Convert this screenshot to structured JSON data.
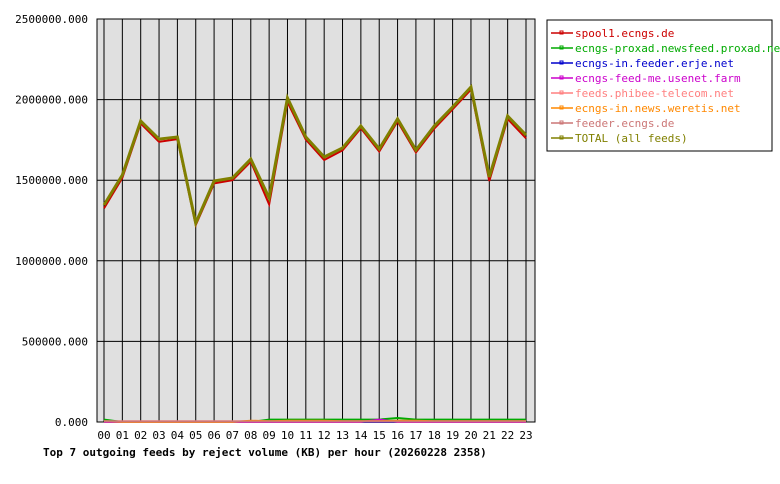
{
  "chart_data": {
    "type": "line",
    "title": "Top 7 outgoing feeds by reject volume (KB) per hour (20260228 2358)",
    "xlabel": "",
    "ylabel": "",
    "ylim": [
      0,
      2500000
    ],
    "yticks": [
      "0.000",
      "500000.000",
      "1000000.000",
      "1500000.000",
      "2000000.000",
      "2500000.000"
    ],
    "grid": true,
    "legend_position": "right",
    "categories": [
      "00",
      "01",
      "02",
      "03",
      "04",
      "05",
      "06",
      "07",
      "08",
      "09",
      "10",
      "11",
      "12",
      "13",
      "14",
      "15",
      "16",
      "17",
      "18",
      "19",
      "20",
      "21",
      "22",
      "23"
    ],
    "series": [
      {
        "name": "spool1.ecngs.de",
        "color": "#cc0000",
        "values": [
          1325000,
          1515000,
          1852000,
          1738000,
          1755000,
          1222000,
          1480000,
          1500000,
          1615000,
          1350000,
          1985000,
          1752000,
          1625000,
          1685000,
          1822000,
          1678000,
          1865000,
          1672000,
          1820000,
          1940000,
          2062000,
          1495000,
          1880000,
          1760000
        ]
      },
      {
        "name": "ecngs-proxad.newsfeed.proxad.net",
        "color": "#00aa00",
        "values": [
          15000,
          0,
          0,
          0,
          0,
          0,
          0,
          0,
          0,
          15000,
          15000,
          15000,
          15000,
          15000,
          15000,
          15000,
          25000,
          15000,
          15000,
          15000,
          15000,
          15000,
          15000,
          15000
        ]
      },
      {
        "name": "ecngs-in.feeder.erje.net",
        "color": "#0000cc",
        "values": [
          0,
          0,
          0,
          0,
          0,
          0,
          0,
          0,
          0,
          0,
          0,
          0,
          0,
          0,
          0,
          0,
          0,
          0,
          0,
          0,
          0,
          0,
          0,
          0
        ]
      },
      {
        "name": "ecngs-feed-me.usenet.farm",
        "color": "#cc00cc",
        "values": [
          0,
          0,
          0,
          0,
          0,
          0,
          0,
          0,
          0,
          0,
          0,
          0,
          0,
          0,
          0,
          15000,
          0,
          0,
          0,
          0,
          0,
          0,
          0,
          0
        ]
      },
      {
        "name": "feeds.phibee-telecom.net",
        "color": "#ff8080",
        "values": [
          5000,
          5000,
          5000,
          5000,
          5000,
          5000,
          5000,
          5000,
          5000,
          5000,
          5000,
          5000,
          5000,
          5000,
          5000,
          5000,
          5000,
          5000,
          5000,
          5000,
          5000,
          5000,
          5000,
          5000
        ]
      },
      {
        "name": "ecngs-in.news.weretis.net",
        "color": "#ff8800",
        "values": [
          5000,
          0,
          0,
          0,
          0,
          0,
          0,
          0,
          8000,
          5000,
          8000,
          8000,
          8000,
          5000,
          5000,
          5000,
          8000,
          8000,
          5000,
          5000,
          5000,
          5000,
          5000,
          5000
        ]
      },
      {
        "name": "feeder.ecngs.de",
        "color": "#cc7777",
        "values": [
          3000,
          3000,
          3000,
          3000,
          3000,
          3000,
          3000,
          3000,
          3000,
          3000,
          3000,
          3000,
          3000,
          3000,
          3000,
          3000,
          3000,
          3000,
          3000,
          3000,
          3000,
          3000,
          3000,
          3000
        ]
      },
      {
        "name": "TOTAL (all feeds)",
        "color": "#808000",
        "values": [
          1346000,
          1532000,
          1867000,
          1755000,
          1768000,
          1234000,
          1495000,
          1514000,
          1631000,
          1390000,
          2010000,
          1768000,
          1644000,
          1700000,
          1836000,
          1694000,
          1880000,
          1687000,
          1836000,
          1954000,
          2078000,
          1520000,
          1898000,
          1780000
        ]
      }
    ]
  }
}
